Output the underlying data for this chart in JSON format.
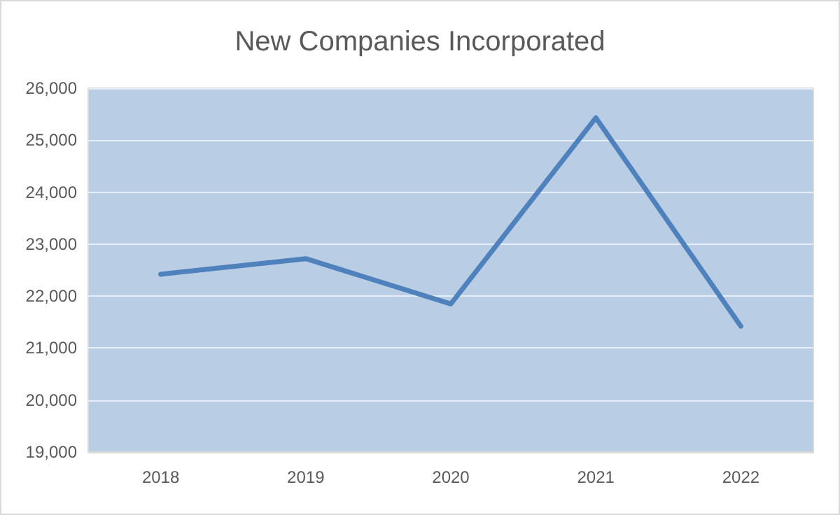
{
  "chart_data": {
    "type": "line",
    "title": "New Companies Incorporated",
    "categories": [
      "2018",
      "2019",
      "2020",
      "2021",
      "2022"
    ],
    "series": [
      {
        "color": "#4f81bd",
        "values": [
          22420,
          22720,
          21850,
          25430,
          21420
        ]
      }
    ],
    "ylim": [
      19000,
      26000
    ],
    "yticks": [
      {
        "value": 19000,
        "label": "19,000"
      },
      {
        "value": 20000,
        "label": "20,000"
      },
      {
        "value": 21000,
        "label": "21,000"
      },
      {
        "value": 22000,
        "label": "22,000"
      },
      {
        "value": 23000,
        "label": "23,000"
      },
      {
        "value": 24000,
        "label": "24,000"
      },
      {
        "value": 25000,
        "label": "25,000"
      },
      {
        "value": 26000,
        "label": "26,000"
      }
    ],
    "grid": "y",
    "marker": "none",
    "line_style": "solid"
  }
}
